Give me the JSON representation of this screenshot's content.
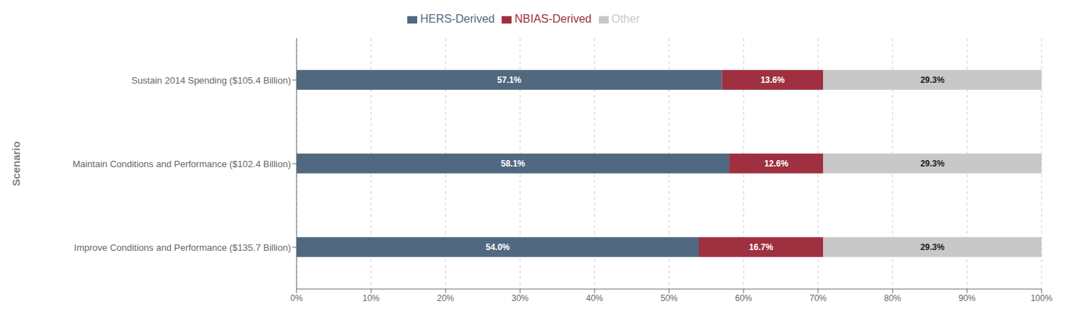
{
  "chart_data": {
    "type": "bar",
    "orientation": "horizontal",
    "stacked": true,
    "data_labels": true,
    "grid": "x",
    "legend": "top",
    "ylabel": "Scenario",
    "categories": [
      "Improve Conditions and Performance ($135.7 Billion)",
      "Maintain Conditions and Performance ($102.4 Billion)",
      "Sustain 2014 Spending ($105.4 Billion)"
    ],
    "series": [
      {
        "name": "HERS-Derived",
        "color": "#506880",
        "values": [
          54.0,
          58.1,
          57.1
        ],
        "value_labels": [
          "54.0%",
          "58.1%",
          "57.1%"
        ]
      },
      {
        "name": "NBIAS-Derived",
        "color": "#9e3040",
        "values": [
          16.7,
          12.6,
          13.6
        ],
        "value_labels": [
          "16.7%",
          "12.6%",
          "13.6%"
        ]
      },
      {
        "name": "Other",
        "color": "#c8c8c8",
        "values": [
          29.3,
          29.3,
          29.3
        ],
        "value_labels": [
          "29.3%",
          "29.3%",
          "29.3%"
        ]
      }
    ],
    "xlim": [
      0,
      100
    ],
    "xticks": [
      {
        "value": 0,
        "label": "0%"
      },
      {
        "value": 10,
        "label": "10%"
      },
      {
        "value": 20,
        "label": "20%"
      },
      {
        "value": 30,
        "label": "30%"
      },
      {
        "value": 40,
        "label": "40%"
      },
      {
        "value": 50,
        "label": "50%"
      },
      {
        "value": 60,
        "label": "60%"
      },
      {
        "value": 70,
        "label": "70%"
      },
      {
        "value": 80,
        "label": "80%"
      },
      {
        "value": 90,
        "label": "90%"
      },
      {
        "value": 100,
        "label": "100%"
      }
    ]
  }
}
